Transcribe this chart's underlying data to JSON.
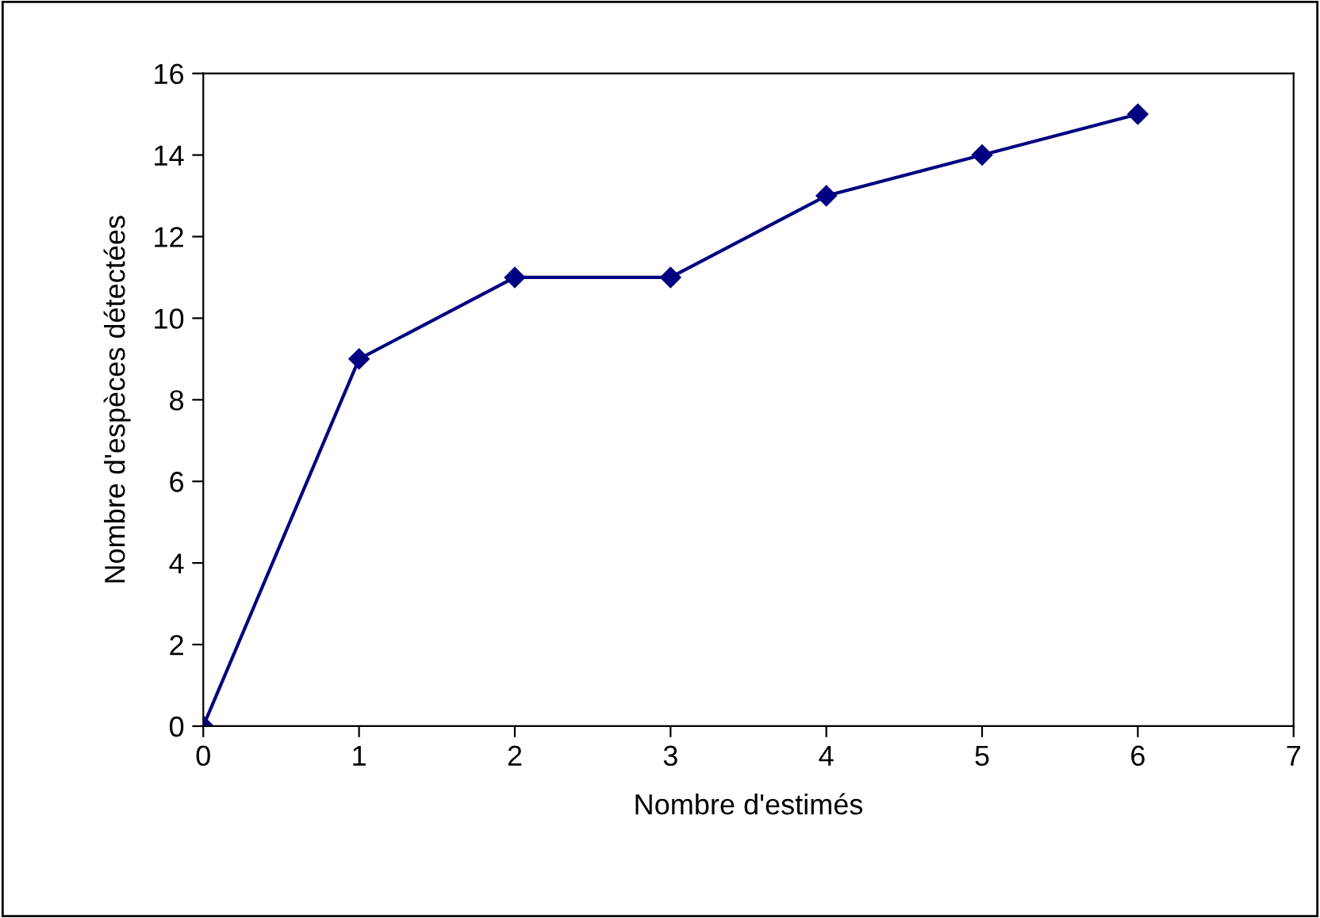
{
  "chart_data": {
    "type": "line",
    "xlabel": "Nombre d'estimés",
    "ylabel": "Nombre d'espèces détectées",
    "x": [
      0,
      1,
      2,
      3,
      4,
      5,
      6
    ],
    "series": [
      {
        "color": "#000080",
        "values": [
          0,
          9,
          11,
          11,
          13,
          14,
          15
        ]
      }
    ],
    "xlim": [
      0,
      7
    ],
    "xticks": [
      0,
      1,
      2,
      3,
      4,
      5,
      6,
      7
    ],
    "ylim": [
      0,
      16
    ],
    "yticks": [
      0,
      2,
      4,
      6,
      8,
      10,
      12,
      14,
      16
    ],
    "marker": "diamond",
    "line_style": "solid",
    "grid": false,
    "legend": false
  }
}
